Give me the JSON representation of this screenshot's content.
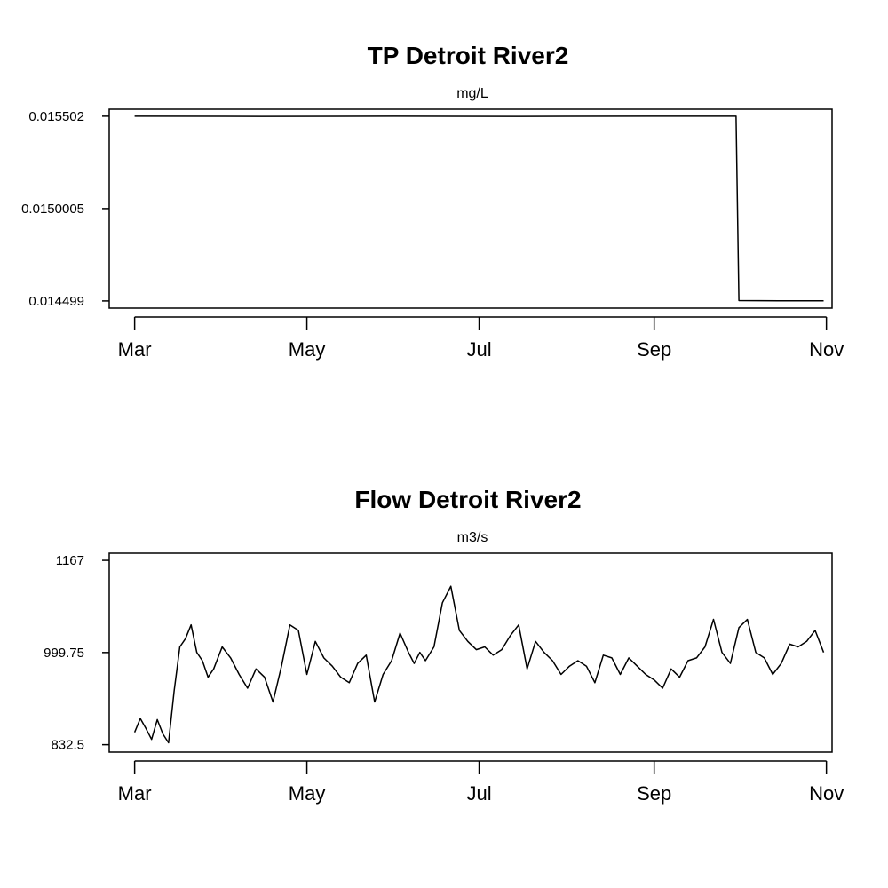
{
  "chart_data": [
    {
      "type": "line",
      "title": "TP Detroit River2",
      "subtitle": "mg/L",
      "xlabel": "",
      "ylabel": "",
      "x_ticks": [
        "Mar",
        "May",
        "Jul",
        "Sep",
        "Nov"
      ],
      "x_tick_dates": [
        "2000-03-01",
        "2000-05-01",
        "2000-07-01",
        "2000-09-01",
        "2000-11-01"
      ],
      "y_ticks": [
        "0.014499",
        "0.0150005",
        "0.015502"
      ],
      "y_tick_values": [
        0.014499,
        0.0150005,
        0.015502
      ],
      "ylim": [
        0.01446,
        0.01554
      ],
      "xlim": [
        "2000-02-21",
        "2000-11-03"
      ],
      "grid": false,
      "series": [
        {
          "x": [
            "2000-03-01",
            "2000-04-15",
            "2000-06-01",
            "2000-07-15",
            "2000-08-31",
            "2000-09-30",
            "2000-10-01",
            "2000-10-15",
            "2000-10-31"
          ],
          "y": [
            0.015502,
            0.015501,
            0.015502,
            0.015501,
            0.015502,
            0.015502,
            0.014501,
            0.0145,
            0.0145
          ]
        }
      ]
    },
    {
      "type": "line",
      "title": "Flow Detroit River2",
      "subtitle": "m3/s",
      "xlabel": "",
      "ylabel": "",
      "x_ticks": [
        "Mar",
        "May",
        "Jul",
        "Sep",
        "Nov"
      ],
      "x_tick_dates": [
        "2000-03-01",
        "2000-05-01",
        "2000-07-01",
        "2000-09-01",
        "2000-11-01"
      ],
      "y_ticks": [
        "832.5",
        "999.75",
        "1167"
      ],
      "y_tick_values": [
        832.5,
        999.75,
        1167
      ],
      "ylim": [
        819,
        1180
      ],
      "xlim": [
        "2000-02-21",
        "2000-11-03"
      ],
      "grid": false,
      "series": [
        {
          "x": [
            "2000-03-01",
            "2000-03-03",
            "2000-03-05",
            "2000-03-07",
            "2000-03-09",
            "2000-03-11",
            "2000-03-13",
            "2000-03-15",
            "2000-03-17",
            "2000-03-19",
            "2000-03-21",
            "2000-03-23",
            "2000-03-25",
            "2000-03-27",
            "2000-03-29",
            "2000-04-01",
            "2000-04-04",
            "2000-04-07",
            "2000-04-10",
            "2000-04-13",
            "2000-04-16",
            "2000-04-19",
            "2000-04-22",
            "2000-04-25",
            "2000-04-28",
            "2000-05-01",
            "2000-05-04",
            "2000-05-07",
            "2000-05-10",
            "2000-05-13",
            "2000-05-16",
            "2000-05-19",
            "2000-05-22",
            "2000-05-25",
            "2000-05-28",
            "2000-05-31",
            "2000-06-03",
            "2000-06-06",
            "2000-06-08",
            "2000-06-10",
            "2000-06-12",
            "2000-06-15",
            "2000-06-18",
            "2000-06-21",
            "2000-06-24",
            "2000-06-27",
            "2000-06-30",
            "2000-07-03",
            "2000-07-06",
            "2000-07-09",
            "2000-07-12",
            "2000-07-15",
            "2000-07-18",
            "2000-07-21",
            "2000-07-24",
            "2000-07-27",
            "2000-07-30",
            "2000-08-02",
            "2000-08-05",
            "2000-08-08",
            "2000-08-11",
            "2000-08-14",
            "2000-08-17",
            "2000-08-20",
            "2000-08-23",
            "2000-08-26",
            "2000-08-29",
            "2000-09-01",
            "2000-09-04",
            "2000-09-07",
            "2000-09-10",
            "2000-09-13",
            "2000-09-16",
            "2000-09-19",
            "2000-09-22",
            "2000-09-25",
            "2000-09-28",
            "2000-10-01",
            "2000-10-04",
            "2000-10-07",
            "2000-10-10",
            "2000-10-13",
            "2000-10-16",
            "2000-10-19",
            "2000-10-22",
            "2000-10-25",
            "2000-10-28",
            "2000-10-31"
          ],
          "y": [
            855,
            880,
            862,
            842,
            878,
            852,
            836,
            930,
            1010,
            1025,
            1050,
            1000,
            985,
            955,
            970,
            1010,
            990,
            960,
            935,
            970,
            955,
            910,
            975,
            1050,
            1040,
            960,
            1020,
            990,
            975,
            955,
            945,
            980,
            995,
            910,
            960,
            985,
            1035,
            1000,
            980,
            1000,
            985,
            1010,
            1090,
            1120,
            1040,
            1020,
            1005,
            1010,
            995,
            1005,
            1030,
            1050,
            970,
            1020,
            1000,
            985,
            960,
            975,
            985,
            975,
            945,
            995,
            990,
            960,
            990,
            975,
            960,
            950,
            935,
            970,
            955,
            985,
            990,
            1010,
            1060,
            1000,
            980,
            1045,
            1060,
            1000,
            990,
            960,
            980,
            1015,
            1010,
            1020,
            1040,
            1000
          ]
        }
      ]
    }
  ]
}
